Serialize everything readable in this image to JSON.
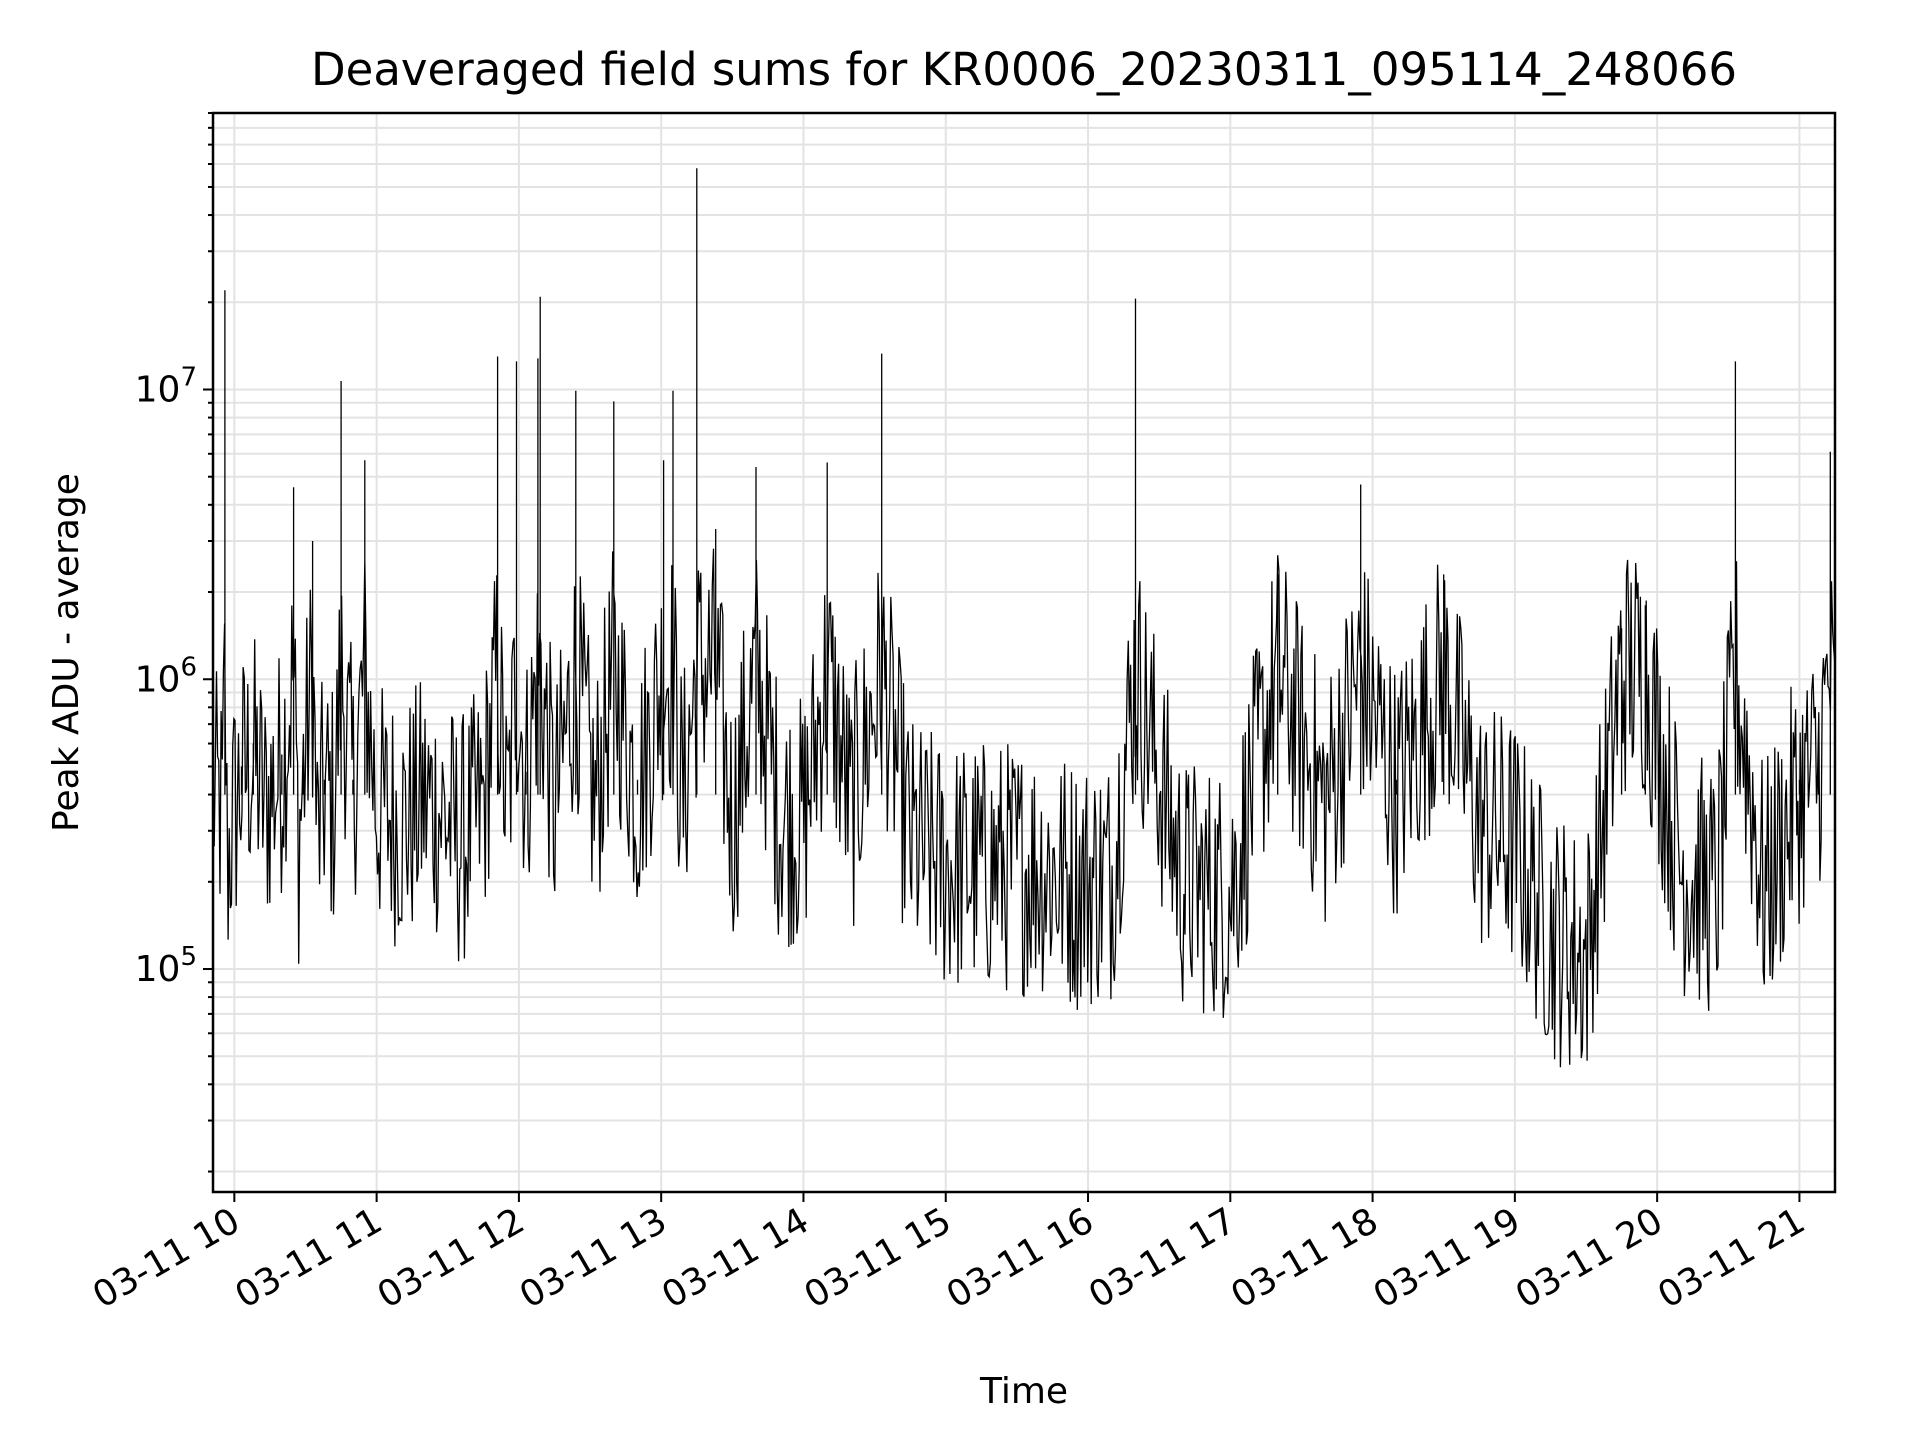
{
  "chart_data": {
    "type": "line",
    "title": "Deaveraged field sums for KR0006_20230311_095114_248066",
    "xlabel": "Time",
    "ylabel": "Peak ADU - average",
    "x_scale": "time",
    "y_scale": "log",
    "grid": true,
    "xlim": [
      "2023-03-11 09:51",
      "2023-03-11 21:15"
    ],
    "ylim": [
      17000,
      90000000
    ],
    "x_ticks": [
      "2023-03-11 10:00",
      "2023-03-11 11:00",
      "2023-03-11 12:00",
      "2023-03-11 13:00",
      "2023-03-11 14:00",
      "2023-03-11 15:00",
      "2023-03-11 16:00",
      "2023-03-11 17:00",
      "2023-03-11 18:00",
      "2023-03-11 19:00",
      "2023-03-11 20:00",
      "2023-03-11 21:00"
    ],
    "x_tick_labels": [
      "03-11 10",
      "03-11 11",
      "03-11 12",
      "03-11 13",
      "03-11 14",
      "03-11 15",
      "03-11 16",
      "03-11 17",
      "03-11 18",
      "03-11 19",
      "03-11 20",
      "03-11 21"
    ],
    "y_ticks": [
      100000,
      1000000,
      10000000
    ],
    "y_tick_labels": [
      {
        "base": "10",
        "exp": "5"
      },
      {
        "base": "10",
        "exp": "6"
      },
      {
        "base": "10",
        "exp": "7"
      }
    ],
    "series": [
      {
        "color": "#000000",
        "x": [
          "2023-03-11 09:51",
          "2023-03-11 09:55",
          "2023-03-11 09:56",
          "2023-03-11 09:57",
          "2023-03-11 09:59",
          "2023-03-11 10:03",
          "2023-03-11 10:08",
          "2023-03-11 10:13",
          "2023-03-11 10:20",
          "2023-03-11 10:25",
          "2023-03-11 10:27",
          "2023-03-11 10:29",
          "2023-03-11 10:33",
          "2023-03-11 10:35",
          "2023-03-11 10:38",
          "2023-03-11 10:42",
          "2023-03-11 10:45",
          "2023-03-11 10:50",
          "2023-03-11 10:55",
          "2023-03-11 11:00",
          "2023-03-11 11:05",
          "2023-03-11 11:12",
          "2023-03-11 11:20",
          "2023-03-11 11:28",
          "2023-03-11 11:35",
          "2023-03-11 11:45",
          "2023-03-11 11:51",
          "2023-03-11 11:55",
          "2023-03-11 11:59",
          "2023-03-11 12:03",
          "2023-03-11 12:08",
          "2023-03-11 12:09",
          "2023-03-11 12:15",
          "2023-03-11 12:24",
          "2023-03-11 12:32",
          "2023-03-11 12:40",
          "2023-03-11 12:50",
          "2023-03-11 13:01",
          "2023-03-11 13:05",
          "2023-03-11 13:09",
          "2023-03-11 13:15",
          "2023-03-11 13:23",
          "2023-03-11 13:30",
          "2023-03-11 13:40",
          "2023-03-11 13:50",
          "2023-03-11 14:00",
          "2023-03-11 14:10",
          "2023-03-11 14:20",
          "2023-03-11 14:33",
          "2023-03-11 14:45",
          "2023-03-11 15:00",
          "2023-03-11 15:20",
          "2023-03-11 15:40",
          "2023-03-11 15:55",
          "2023-03-11 16:10",
          "2023-03-11 16:20",
          "2023-03-11 16:40",
          "2023-03-11 17:00",
          "2023-03-11 17:20",
          "2023-03-11 17:40",
          "2023-03-11 17:55",
          "2023-03-11 18:10",
          "2023-03-11 18:30",
          "2023-03-11 18:45",
          "2023-03-11 19:00",
          "2023-03-11 19:15",
          "2023-03-11 19:30",
          "2023-03-11 19:45",
          "2023-03-11 19:55",
          "2023-03-11 20:10",
          "2023-03-11 20:25",
          "2023-03-11 20:33",
          "2023-03-11 20:45",
          "2023-03-11 21:00",
          "2023-03-11 21:08",
          "2023-03-11 21:13",
          "2023-03-11 21:15"
        ],
        "y": [
          450000,
          380000,
          22000000,
          250000,
          350000,
          500000,
          600000,
          400000,
          550000,
          4600000,
          300000,
          500000,
          3000000,
          300000,
          450000,
          400000,
          10700000,
          450000,
          5700000,
          400000,
          380000,
          350000,
          420000,
          380000,
          300000,
          400000,
          13000000,
          350000,
          12500000,
          480000,
          12800000,
          20900000,
          380000,
          9900000,
          400000,
          9100000,
          450000,
          5700000,
          9900000,
          400000,
          58000000,
          3300000,
          350000,
          5400000,
          380000,
          350000,
          5600000,
          380000,
          13300000,
          300000,
          250000,
          250000,
          250000,
          220000,
          230000,
          20600000,
          220000,
          200000,
          2300000,
          400000,
          4700000,
          450000,
          2300000,
          350000,
          300000,
          150000,
          120000,
          1500000,
          1800000,
          250000,
          200000,
          12500000,
          200000,
          450000,
          550000,
          6100000,
          700000
        ]
      }
    ]
  }
}
